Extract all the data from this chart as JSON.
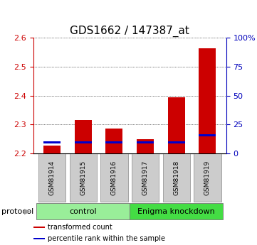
{
  "title": "GDS1662 / 147387_at",
  "categories": [
    "GSM81914",
    "GSM81915",
    "GSM81916",
    "GSM81917",
    "GSM81918",
    "GSM81919"
  ],
  "red_values": [
    2.225,
    2.315,
    2.285,
    2.248,
    2.395,
    2.565
  ],
  "blue_values": [
    2.237,
    2.237,
    2.237,
    2.237,
    2.237,
    2.262
  ],
  "baseline": 2.2,
  "ylim": [
    2.2,
    2.6
  ],
  "yticks": [
    2.2,
    2.3,
    2.4,
    2.5,
    2.6
  ],
  "right_yticks": [
    0,
    25,
    50,
    75,
    100
  ],
  "right_ylabels": [
    "0",
    "25",
    "50",
    "75",
    "100%"
  ],
  "protocol_groups": [
    {
      "label": "control",
      "span": [
        0,
        3
      ],
      "color": "#99ee99"
    },
    {
      "label": "Enigma knockdown",
      "span": [
        3,
        6
      ],
      "color": "#44dd44"
    }
  ],
  "protocol_label": "protocol",
  "legend": [
    {
      "color": "#cc0000",
      "label": "transformed count"
    },
    {
      "color": "#0000cc",
      "label": "percentile rank within the sample"
    }
  ],
  "bar_width": 0.55,
  "red_color": "#cc0000",
  "blue_color": "#0000cc",
  "left_axis_color": "#cc0000",
  "right_axis_color": "#0000bb",
  "bg_color": "#ffffff",
  "tick_label_box_color": "#cccccc",
  "title_fontsize": 11,
  "tick_fontsize": 8,
  "legend_fontsize": 7
}
